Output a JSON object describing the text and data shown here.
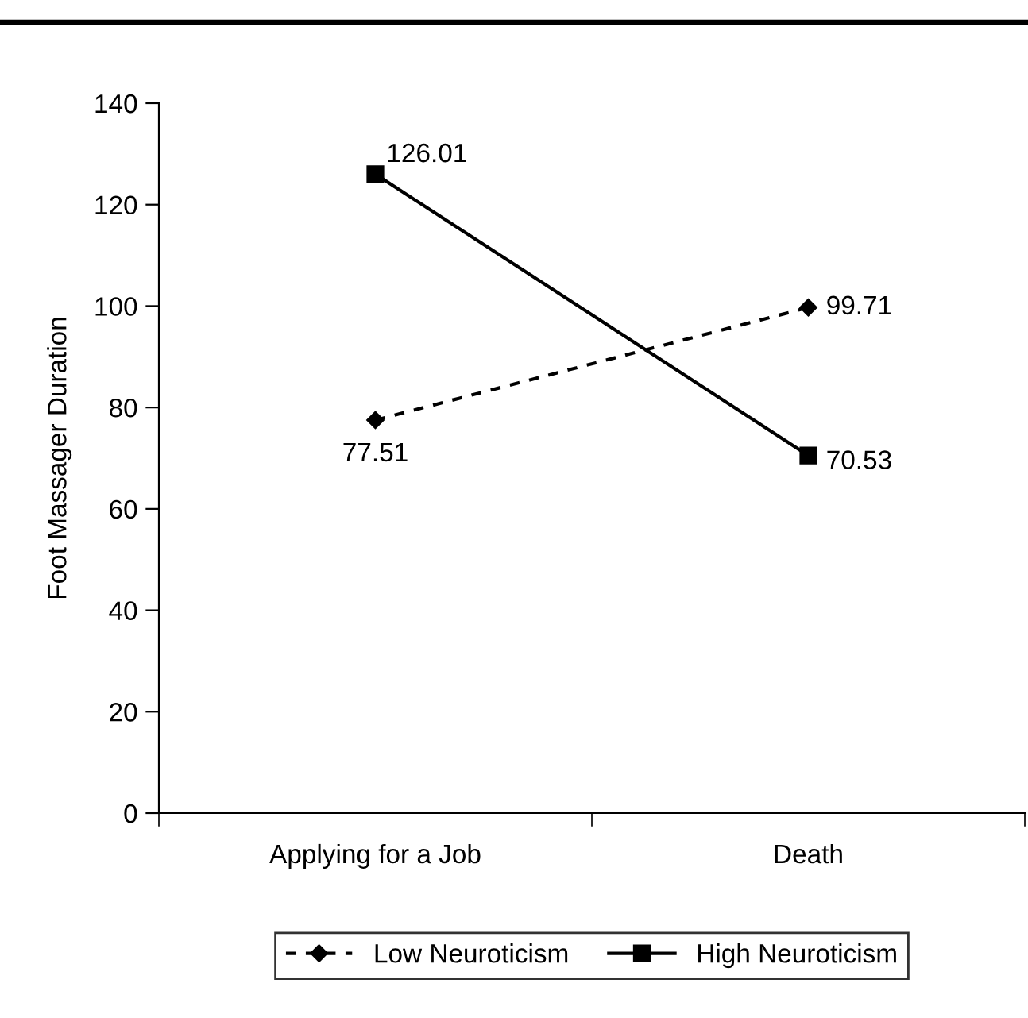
{
  "chart_data": {
    "type": "line",
    "ylabel": "Foot Massager Duration",
    "categories": [
      "Applying for a Job",
      "Death"
    ],
    "series": [
      {
        "name": "Low Neuroticism",
        "color": "#000000",
        "values": [
          77.51,
          99.71
        ],
        "marker": "diamond",
        "line_style": "dashed"
      },
      {
        "name": "High Neuroticism",
        "color": "#000000",
        "values": [
          126.01,
          70.53
        ],
        "marker": "square",
        "line_style": "solid"
      }
    ],
    "ylim": [
      0,
      140
    ],
    "yticks": [
      0,
      20,
      40,
      60,
      80,
      100,
      120,
      140
    ],
    "grid": false,
    "legend": "bottom",
    "data_labels": true
  }
}
